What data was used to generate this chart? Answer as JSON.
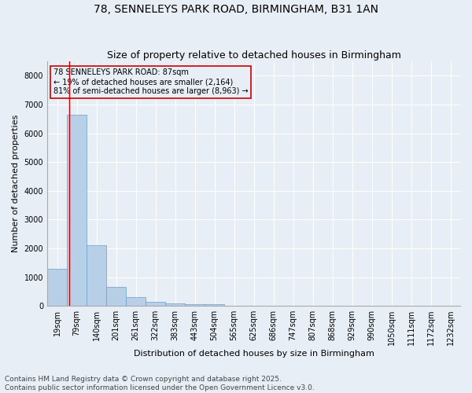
{
  "title": "78, SENNELEYS PARK ROAD, BIRMINGHAM, B31 1AN",
  "subtitle": "Size of property relative to detached houses in Birmingham",
  "xlabel": "Distribution of detached houses by size in Birmingham",
  "ylabel": "Number of detached properties",
  "bar_labels": [
    "19sqm",
    "79sqm",
    "140sqm",
    "201sqm",
    "261sqm",
    "322sqm",
    "383sqm",
    "443sqm",
    "504sqm",
    "565sqm",
    "625sqm",
    "686sqm",
    "747sqm",
    "807sqm",
    "868sqm",
    "929sqm",
    "990sqm",
    "1050sqm",
    "1111sqm",
    "1172sqm",
    "1232sqm"
  ],
  "bar_values": [
    1300,
    6650,
    2100,
    670,
    305,
    150,
    80,
    55,
    50,
    0,
    0,
    0,
    0,
    0,
    0,
    0,
    0,
    0,
    0,
    0,
    0
  ],
  "bar_color": "#b8cfe8",
  "bar_edge_color": "#6a9ec8",
  "ylim": [
    0,
    8500
  ],
  "yticks": [
    0,
    1000,
    2000,
    3000,
    4000,
    5000,
    6000,
    7000,
    8000
  ],
  "vline_color": "#cc0000",
  "vline_x": 0.63,
  "annotation_text": "78 SENNELEYS PARK ROAD: 87sqm\n← 19% of detached houses are smaller (2,164)\n81% of semi-detached houses are larger (8,963) →",
  "annotation_box_color": "#cc0000",
  "background_color": "#e8eef5",
  "grid_color": "#ffffff",
  "footer_text": "Contains HM Land Registry data © Crown copyright and database right 2025.\nContains public sector information licensed under the Open Government Licence v3.0.",
  "title_fontsize": 10,
  "subtitle_fontsize": 9,
  "annotation_fontsize": 7,
  "footer_fontsize": 6.5,
  "ylabel_fontsize": 8,
  "xlabel_fontsize": 8,
  "tick_fontsize": 7
}
